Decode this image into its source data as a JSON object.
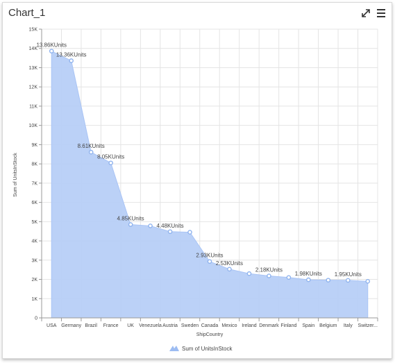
{
  "window": {
    "title": "Chart_1",
    "expand_icon": "expand-icon",
    "menu_icon": "hamburger-menu-icon"
  },
  "colors": {
    "area_fill": "#b7cff7",
    "area_line": "#a9c4f5",
    "marker": "#8fb3ee",
    "grid": "#e4e4e4"
  },
  "chart_data": {
    "type": "area",
    "xlabel": "ShipCountry",
    "ylabel": "Sum of UnitsInStock",
    "ylim": [
      0,
      15000
    ],
    "y_ticks": [
      "0",
      "1K",
      "2K",
      "3K",
      "4K",
      "5K",
      "6K",
      "7K",
      "8K",
      "9K",
      "10K",
      "11K",
      "12K",
      "13K",
      "14K",
      "15K"
    ],
    "grid": true,
    "legend_position": "bottom",
    "categories": [
      "USA",
      "Germany",
      "Brazil",
      "France",
      "UK",
      "Venezuela",
      "Austria",
      "Sweden",
      "Canada",
      "Mexico",
      "Ireland",
      "Denmark",
      "Finland",
      "Spain",
      "Belgium",
      "Italy",
      "Switzer..."
    ],
    "series": [
      {
        "name": "Sum of UnitsInStock",
        "values": [
          13860,
          13360,
          8610,
          8050,
          4850,
          4780,
          4480,
          4450,
          2930,
          2530,
          2300,
          2180,
          2100,
          1980,
          1960,
          1950,
          1900
        ],
        "data_labels": [
          "13.86KUnits",
          "13.36KUnits",
          "8.61KUnits",
          "8.05KUnits",
          "4.85KUnits",
          "",
          "4.48KUnits",
          "",
          "2.93KUnits",
          "2.53KUnits",
          "",
          "2.18KUnits",
          "",
          "1.98KUnits",
          "",
          "1.95KUnits",
          ""
        ]
      }
    ]
  }
}
